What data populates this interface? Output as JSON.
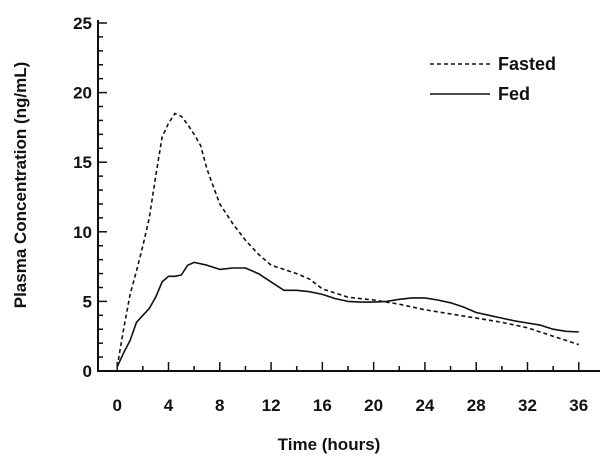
{
  "chart_data": {
    "type": "line",
    "xlabel": "Time (hours)",
    "ylabel": "Plasma Concentration (ng/mL)",
    "xlim": [
      -1.5,
      37.5
    ],
    "ylim": [
      0,
      25
    ],
    "xticks": [
      0,
      4,
      8,
      12,
      16,
      20,
      24,
      28,
      32,
      36
    ],
    "xtick_labels": [
      "0",
      "4",
      "8",
      "12",
      "16",
      "20",
      "24",
      "28",
      "32",
      "36"
    ],
    "yticks": [
      0,
      5,
      10,
      15,
      20,
      25
    ],
    "ytick_labels": [
      "0",
      "5",
      "10",
      "15",
      "20",
      "25"
    ],
    "legend_position": "top-right",
    "grid": false,
    "series": [
      {
        "name": "Fasted",
        "style": "dashed",
        "x": [
          0,
          0.5,
          1,
          1.5,
          2,
          2.5,
          3,
          3.5,
          4,
          4.5,
          5,
          5.5,
          6,
          6.5,
          7,
          8,
          9,
          10,
          11,
          12,
          13,
          14,
          15,
          16,
          18,
          20,
          22,
          24,
          26,
          28,
          30,
          32,
          34,
          36
        ],
        "y": [
          0.3,
          3,
          5.5,
          7.2,
          9,
          11,
          14,
          16.8,
          17.8,
          18.5,
          18.3,
          17.7,
          17,
          16.2,
          14.5,
          12,
          10.6,
          9.4,
          8.4,
          7.6,
          7.3,
          7,
          6.6,
          5.9,
          5.3,
          5.1,
          4.8,
          4.4,
          4.1,
          3.8,
          3.5,
          3.1,
          2.5,
          1.9
        ]
      },
      {
        "name": "Fed",
        "style": "solid",
        "x": [
          0,
          0.5,
          1,
          1.5,
          2,
          2.5,
          3,
          3.5,
          4,
          4.5,
          5,
          5.5,
          6,
          7,
          8,
          9,
          10,
          11,
          12,
          13,
          14,
          15,
          16,
          17,
          18,
          19,
          20,
          21,
          22,
          23,
          24,
          25,
          26,
          27,
          28,
          29,
          30,
          31,
          32,
          33,
          34,
          35,
          36
        ],
        "y": [
          0.3,
          1.3,
          2.2,
          3.5,
          4,
          4.5,
          5.3,
          6.4,
          6.8,
          6.8,
          6.9,
          7.6,
          7.8,
          7.6,
          7.3,
          7.4,
          7.4,
          7,
          6.4,
          5.8,
          5.8,
          5.7,
          5.5,
          5.2,
          5,
          4.95,
          4.95,
          5,
          5.15,
          5.25,
          5.25,
          5.1,
          4.9,
          4.6,
          4.2,
          4,
          3.8,
          3.6,
          3.45,
          3.3,
          3,
          2.85,
          2.8
        ]
      }
    ]
  }
}
